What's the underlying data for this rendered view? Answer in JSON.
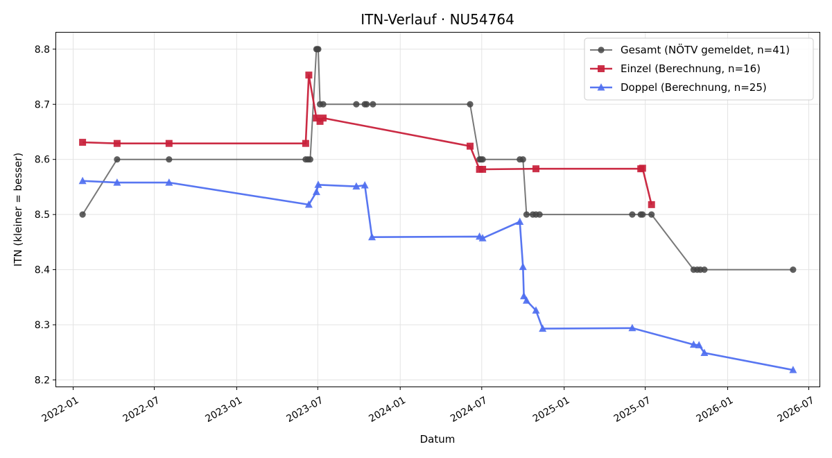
{
  "chart_data": {
    "type": "line",
    "title": "ITN-Verlauf · NU54764",
    "xlabel": "Datum",
    "ylabel": "ITN  (kleiner = besser)",
    "x_type": "date",
    "xlim": [
      "2021-11-24",
      "2026-07-25"
    ],
    "ylim": [
      8.188,
      8.83
    ],
    "x_ticks": [
      "2022-01",
      "2022-07",
      "2023-01",
      "2023-07",
      "2024-01",
      "2024-07",
      "2025-01",
      "2025-07",
      "2026-01",
      "2026-07"
    ],
    "y_ticks": [
      "8.2",
      "8.3",
      "8.4",
      "8.5",
      "8.6",
      "8.7",
      "8.8"
    ],
    "grid": true,
    "legend_position": "top-right",
    "series": [
      {
        "name": "Gesamt (NÖTV gemeldet, n=41)",
        "color": "#444444",
        "marker": "circle",
        "points": [
          [
            "2022-01-22",
            8.5
          ],
          [
            "2022-04-09",
            8.6
          ],
          [
            "2022-08-03",
            8.6
          ],
          [
            "2023-06-04",
            8.6
          ],
          [
            "2023-06-09",
            8.6
          ],
          [
            "2023-06-14",
            8.6
          ],
          [
            "2023-06-28",
            8.8
          ],
          [
            "2023-06-30",
            8.8
          ],
          [
            "2023-07-02",
            8.8
          ],
          [
            "2023-07-06",
            8.7
          ],
          [
            "2023-07-13",
            8.7
          ],
          [
            "2023-09-25",
            8.7
          ],
          [
            "2023-10-14",
            8.7
          ],
          [
            "2023-10-18",
            8.7
          ],
          [
            "2023-11-01",
            8.7
          ],
          [
            "2024-06-05",
            8.7
          ],
          [
            "2024-06-26",
            8.6
          ],
          [
            "2024-06-29",
            8.6
          ],
          [
            "2024-07-03",
            8.6
          ],
          [
            "2024-09-24",
            8.6
          ],
          [
            "2024-10-01",
            8.6
          ],
          [
            "2024-10-09",
            8.5
          ],
          [
            "2024-10-23",
            8.5
          ],
          [
            "2024-10-30",
            8.5
          ],
          [
            "2024-11-07",
            8.5
          ],
          [
            "2025-06-02",
            8.5
          ],
          [
            "2025-06-21",
            8.5
          ],
          [
            "2025-06-25",
            8.5
          ],
          [
            "2025-07-15",
            8.5
          ],
          [
            "2025-10-17",
            8.4
          ],
          [
            "2025-10-25",
            8.4
          ],
          [
            "2025-11-01",
            8.4
          ],
          [
            "2025-11-10",
            8.4
          ],
          [
            "2026-05-27",
            8.4
          ]
        ]
      },
      {
        "name": "Einzel (Berechnung, n=16)",
        "color": "#c8203a",
        "marker": "square",
        "points": [
          [
            "2022-01-22",
            8.631
          ],
          [
            "2022-04-09",
            8.629
          ],
          [
            "2022-08-03",
            8.629
          ],
          [
            "2023-06-04",
            8.629
          ],
          [
            "2023-06-11",
            8.753
          ],
          [
            "2023-06-28",
            8.675
          ],
          [
            "2023-07-06",
            8.669
          ],
          [
            "2023-07-13",
            8.675
          ],
          [
            "2024-06-05",
            8.624
          ],
          [
            "2024-06-26",
            8.582
          ],
          [
            "2024-07-03",
            8.582
          ],
          [
            "2024-10-30",
            8.583
          ],
          [
            "2025-06-21",
            8.583
          ],
          [
            "2025-06-25",
            8.584
          ],
          [
            "2025-07-15",
            8.518
          ]
        ]
      },
      {
        "name": "Doppel (Berechnung, n=25)",
        "color": "#4f6ff0",
        "marker": "triangle",
        "points": [
          [
            "2022-01-22",
            8.561
          ],
          [
            "2022-04-09",
            8.558
          ],
          [
            "2022-08-03",
            8.558
          ],
          [
            "2023-06-11",
            8.518
          ],
          [
            "2023-06-28",
            8.541
          ],
          [
            "2023-07-02",
            8.554
          ],
          [
            "2023-09-25",
            8.551
          ],
          [
            "2023-10-14",
            8.553
          ],
          [
            "2023-10-30",
            8.459
          ],
          [
            "2024-06-26",
            8.46
          ],
          [
            "2024-07-03",
            8.457
          ],
          [
            "2024-09-24",
            8.487
          ],
          [
            "2024-10-01",
            8.405
          ],
          [
            "2024-10-03",
            8.352
          ],
          [
            "2024-10-09",
            8.344
          ],
          [
            "2024-10-30",
            8.326
          ],
          [
            "2024-11-14",
            8.293
          ],
          [
            "2025-06-02",
            8.294
          ],
          [
            "2025-10-17",
            8.264
          ],
          [
            "2025-10-29",
            8.263
          ],
          [
            "2025-11-10",
            8.249
          ],
          [
            "2026-05-27",
            8.218
          ]
        ]
      }
    ]
  }
}
